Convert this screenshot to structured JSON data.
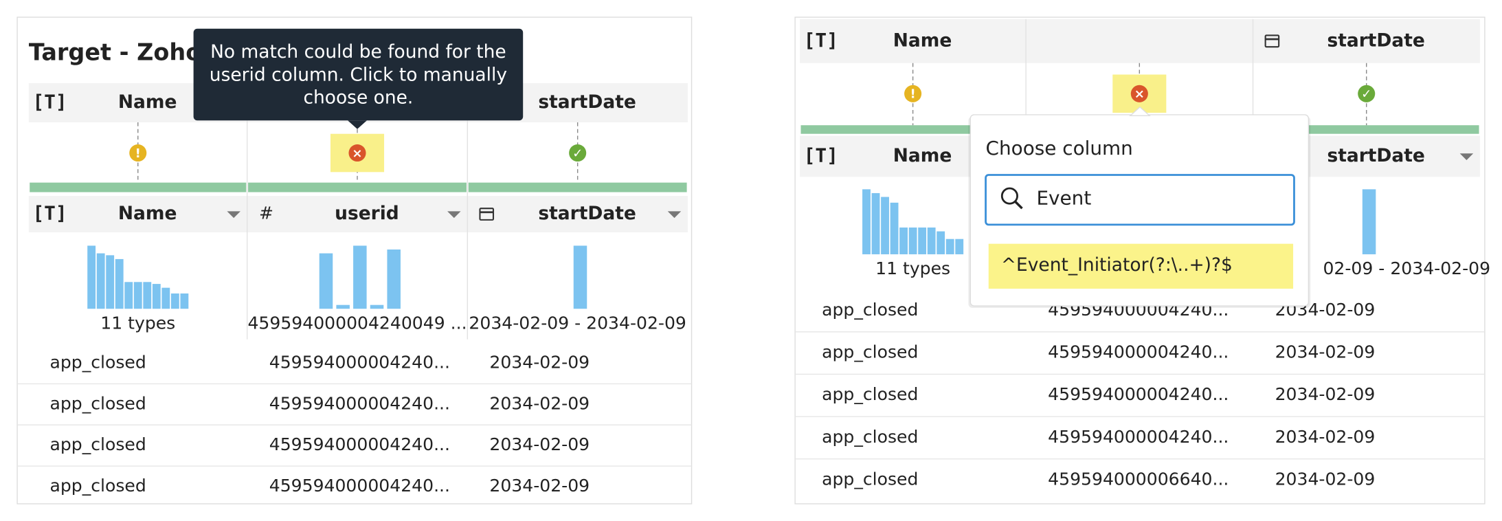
{
  "left": {
    "title": "Target - Zoho C",
    "tooltip": [
      "No match could be found for the",
      "userid column. Click to manually",
      "choose one."
    ],
    "mapping_headers": [
      "Name",
      null,
      "startDate"
    ],
    "status": [
      "warning",
      "error",
      "ok"
    ],
    "columns": [
      {
        "name": "Name",
        "kind": "text",
        "histogram": [
          66,
          58,
          56,
          52,
          28,
          28,
          28,
          26,
          22,
          16,
          16
        ],
        "summary": "11 types"
      },
      {
        "name": "userid",
        "kind": "number",
        "histogram": [
          58,
          4,
          66,
          4,
          62
        ],
        "summary": "459594000004240049 ..."
      },
      {
        "name": "startDate",
        "kind": "date",
        "histogram": [
          66
        ],
        "summary": "2034-02-09 - 2034-02-09"
      }
    ],
    "rows": [
      [
        "app_closed",
        "459594000004240...",
        "2034-02-09"
      ],
      [
        "app_closed",
        "459594000004240...",
        "2034-02-09"
      ],
      [
        "app_closed",
        "459594000004240...",
        "2034-02-09"
      ],
      [
        "app_closed",
        "459594000004240...",
        "2034-02-09"
      ]
    ]
  },
  "right": {
    "mapping_headers": [
      "Name",
      null,
      "startDate"
    ],
    "status": [
      "warning",
      "error",
      "ok"
    ],
    "columns": [
      {
        "name": "Name",
        "kind": "text",
        "histogram": [
          68,
          64,
          60,
          54,
          28,
          28,
          28,
          28,
          24,
          16,
          16
        ],
        "summary": "11 types"
      },
      {
        "name": null,
        "kind": null,
        "histogram": [],
        "summary": null
      },
      {
        "name": "startDate",
        "kind": "date",
        "histogram": [
          68
        ],
        "summary": "02-09 - 2034-02-09"
      }
    ],
    "rows": [
      [
        "app_closed",
        "459594000004240...",
        "2034-02-09"
      ],
      [
        "app_closed",
        "459594000004240...",
        "2034-02-09"
      ],
      [
        "app_closed",
        "459594000004240...",
        "2034-02-09"
      ],
      [
        "app_closed",
        "459594000004240...",
        "2034-02-09"
      ],
      [
        "app_closed",
        "459594000006640...",
        "2034-02-09"
      ]
    ],
    "popup": {
      "title": "Choose column",
      "query": "Event",
      "options": [
        "^Event_Initiator(?:\\..+)?$"
      ]
    }
  }
}
